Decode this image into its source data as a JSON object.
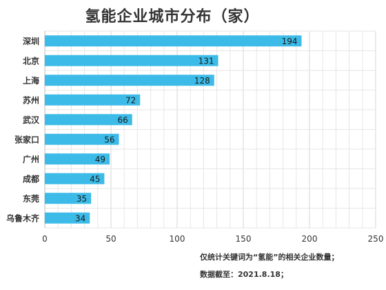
{
  "chart_data": {
    "type": "bar",
    "orientation": "horizontal",
    "title": "氢能企业城市分布（家）",
    "categories": [
      "深圳",
      "北京",
      "上海",
      "苏州",
      "武汉",
      "张家口",
      "广州",
      "成都",
      "东莞",
      "乌鲁木齐"
    ],
    "values": [
      194,
      131,
      128,
      72,
      66,
      56,
      49,
      45,
      35,
      34
    ],
    "xlim": [
      0,
      250
    ],
    "xticks": [
      "0",
      "50",
      "100",
      "150",
      "200",
      "250"
    ],
    "grid": true,
    "data_labels": true,
    "legend": "none",
    "bar_color": "#3dbbe8"
  },
  "notes": {
    "line1": "仅统计关键词为“氢能”的相关企业数量；",
    "line2": "数据截至：2021.8.18；"
  }
}
